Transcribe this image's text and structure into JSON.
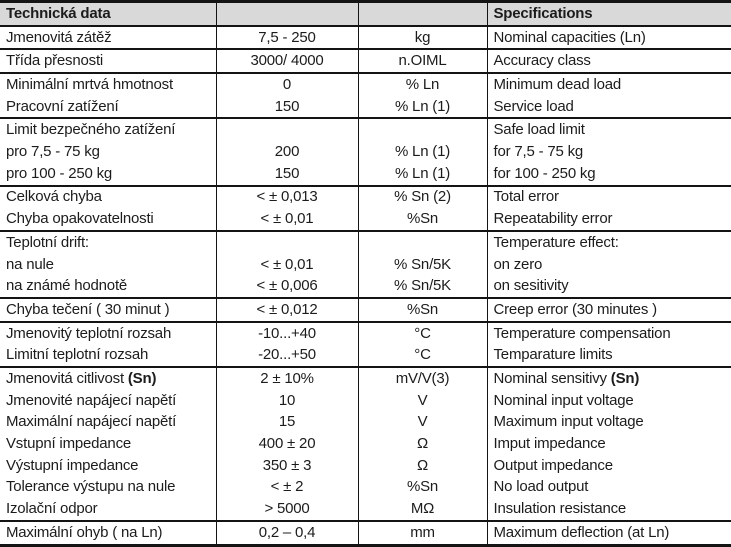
{
  "table": {
    "header": {
      "czech": "Technická data",
      "value": "",
      "unit": "",
      "english": "Specifications"
    },
    "rows": [
      {
        "cz": "Jmenovitá zátěž",
        "val": "7,5 - 250",
        "unit": "kg",
        "en": "Nominal capacities (Ln)"
      },
      {
        "cz": "Třída přesnosti",
        "val": "3000/ 4000",
        "unit": "n.OIML",
        "en": "Accuracy class"
      },
      {
        "cz": "Minimální mrtvá hmotnost",
        "val": "0",
        "unit": "% Ln",
        "en": "Minimum dead load"
      },
      {
        "cz": "Pracovní zatížení",
        "val": "150",
        "unit": "% Ln (1)",
        "en": "Service load"
      },
      {
        "cz": "Limit bezpečného zatížení",
        "val": "",
        "unit": "",
        "en": "Safe load limit"
      },
      {
        "cz": "pro 7,5 - 75 kg",
        "val": "200",
        "unit": "% Ln (1)",
        "en": "for 7,5 - 75 kg"
      },
      {
        "cz": "pro 100 - 250 kg",
        "val": "150",
        "unit": "% Ln (1)",
        "en": "for 100 - 250 kg"
      },
      {
        "cz": "Celková chyba",
        "val": "< ± 0,013",
        "unit": "% Sn (2)",
        "en": "Total error"
      },
      {
        "cz": "Chyba opakovatelnosti",
        "val": "< ± 0,01",
        "unit": "%Sn",
        "en": "Repeatability error"
      },
      {
        "cz": "Teplotní drift:",
        "val": "",
        "unit": "",
        "en": "Temperature effect:"
      },
      {
        "cz": "na nule",
        "val": "< ± 0,01",
        "unit": "% Sn/5K",
        "en": "on zero"
      },
      {
        "cz": "na známé hodnotě",
        "val": "< ± 0,006",
        "unit": "% Sn/5K",
        "en": "on sesitivity"
      },
      {
        "cz": "Chyba tečení ( 30 minut )",
        "val": "< ± 0,012",
        "unit": "%Sn",
        "en": "Creep error (30 minutes )"
      },
      {
        "cz": "Jmenovitý teplotní rozsah",
        "val": "-10...+40",
        "unit": "°C",
        "en": "Temperature compensation"
      },
      {
        "cz": "Limitní teplotní rozsah",
        "val": "-20...+50",
        "unit": "°C",
        "en": "Temparature limits"
      },
      {
        "cz": "Jmenovitá citlivost ",
        "cz_bold": "(Sn)",
        "val": "2 ± 10%",
        "unit": "mV/V(3)",
        "en": "Nominal sensitivy ",
        "en_bold": "(Sn)"
      },
      {
        "cz": "Jmenovité napájecí napětí",
        "val": "10",
        "unit": "V",
        "en": "Nominal input voltage"
      },
      {
        "cz": "Maximální napájecí napětí",
        "val": "15",
        "unit": "V",
        "en": "Maximum input voltage"
      },
      {
        "cz": "Vstupní impedance",
        "val": "400 ± 20",
        "unit": "Ω",
        "en": "Imput impedance"
      },
      {
        "cz": "Výstupní impedance",
        "val": "350 ± 3",
        "unit": "Ω",
        "en": "Output impedance"
      },
      {
        "cz": "Tolerance výstupu na nule",
        "val": "< ± 2",
        "unit": "%Sn",
        "en": "No load output"
      },
      {
        "cz": "Izolační odpor",
        "val": "> 5000",
        "unit": "MΩ",
        "en": "Insulation resistance"
      },
      {
        "cz": "Maximální ohyb ( na Ln)",
        "val": "0,2 – 0,4",
        "unit": "mm",
        "en": "Maximum deflection (at Ln)"
      }
    ]
  }
}
